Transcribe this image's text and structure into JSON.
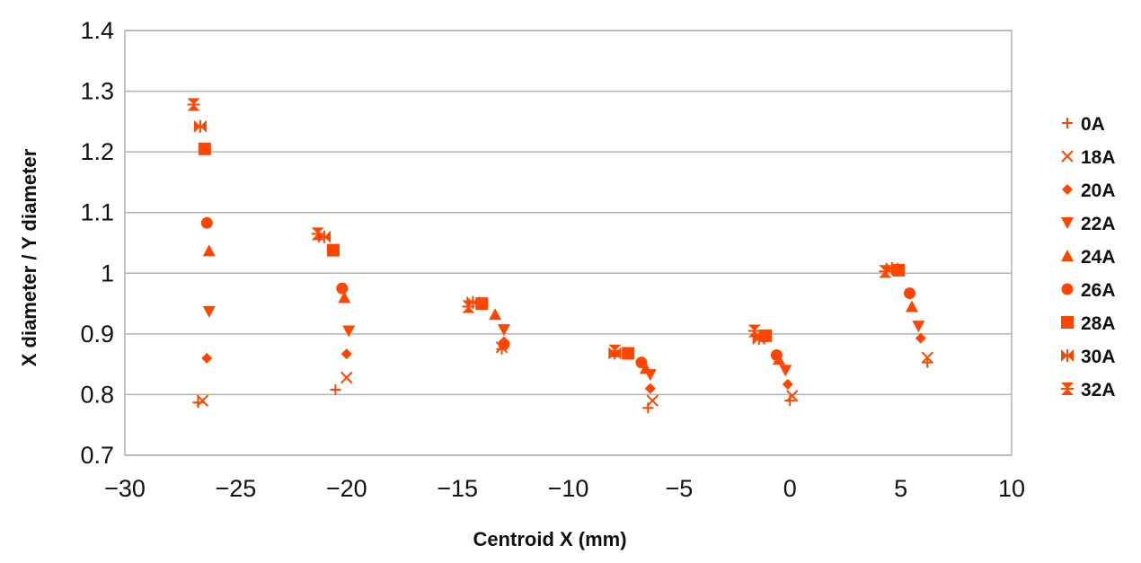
{
  "chart_data": {
    "type": "scatter",
    "xlabel": "Centroid X (mm)",
    "ylabel": "X diameter / Y diameter",
    "xlim": [
      -30,
      10
    ],
    "ylim": [
      0.7,
      1.4
    ],
    "xticks": [
      -30,
      -25,
      -20,
      -15,
      -10,
      -5,
      0,
      5,
      10
    ],
    "yticks": [
      0.7,
      0.8,
      0.9,
      1,
      1.1,
      1.2,
      1.3,
      1.4
    ],
    "grid": "horizontal",
    "legend_position": "right",
    "marker_color": "#ff4500",
    "series": [
      {
        "name": "0A",
        "marker": "plus",
        "x": [
          -26.7,
          -20.5,
          -13.0,
          -6.4,
          0.0,
          6.2
        ],
        "y": [
          0.787,
          0.808,
          0.875,
          0.778,
          0.79,
          0.853
        ]
      },
      {
        "name": "18A",
        "marker": "x",
        "x": [
          -26.5,
          -20.0,
          -13.0,
          -6.2,
          0.1,
          6.2
        ],
        "y": [
          0.79,
          0.828,
          0.878,
          0.79,
          0.798,
          0.861
        ]
      },
      {
        "name": "20A",
        "marker": "diamond",
        "x": [
          -26.3,
          -20.0,
          -12.9,
          -6.3,
          -0.1,
          5.9
        ],
        "y": [
          0.86,
          0.867,
          0.887,
          0.81,
          0.817,
          0.893
        ]
      },
      {
        "name": "22A",
        "marker": "triangle-down",
        "x": [
          -26.2,
          -19.9,
          -12.9,
          -6.3,
          -0.2,
          5.8
        ],
        "y": [
          0.937,
          0.905,
          0.907,
          0.833,
          0.84,
          0.913
        ]
      },
      {
        "name": "24A",
        "marker": "triangle-up",
        "x": [
          -26.2,
          -20.1,
          -13.3,
          -6.5,
          -0.5,
          5.5
        ],
        "y": [
          1.037,
          0.96,
          0.932,
          0.843,
          0.858,
          0.945
        ]
      },
      {
        "name": "26A",
        "marker": "circle",
        "x": [
          -26.3,
          -20.2,
          -12.9,
          -6.7,
          -0.6,
          5.4
        ],
        "y": [
          1.083,
          0.975,
          0.883,
          0.853,
          0.865,
          0.967
        ]
      },
      {
        "name": "28A",
        "marker": "square",
        "x": [
          -26.4,
          -20.6,
          -13.9,
          -7.3,
          -1.1,
          4.9
        ],
        "y": [
          1.205,
          1.038,
          0.95,
          0.868,
          0.897,
          1.005
        ]
      },
      {
        "name": "30A",
        "marker": "bowtie",
        "x": [
          -26.6,
          -21.0,
          -14.3,
          -7.9,
          -1.4,
          4.6
        ],
        "y": [
          1.242,
          1.06,
          0.952,
          0.868,
          0.892,
          1.008
        ]
      },
      {
        "name": "32A",
        "marker": "hourglass",
        "x": [
          -26.9,
          -21.3,
          -14.5,
          -7.9,
          -1.6,
          4.3
        ],
        "y": [
          1.278,
          1.065,
          0.945,
          0.872,
          0.905,
          1.003
        ]
      }
    ]
  }
}
